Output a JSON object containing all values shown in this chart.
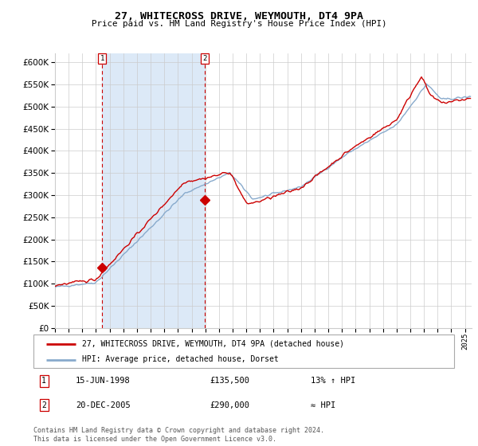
{
  "title": "27, WHITECROSS DRIVE, WEYMOUTH, DT4 9PA",
  "subtitle": "Price paid vs. HM Land Registry's House Price Index (HPI)",
  "ylim": [
    0,
    620000
  ],
  "yticks": [
    0,
    50000,
    100000,
    150000,
    200000,
    250000,
    300000,
    350000,
    400000,
    450000,
    500000,
    550000,
    600000
  ],
  "xlim_start": 1995.0,
  "xlim_end": 2025.5,
  "purchase1_date": 1998.46,
  "purchase1_price": 135500,
  "purchase2_date": 2005.97,
  "purchase2_price": 290000,
  "shade_color": "#dce9f7",
  "vline_color": "#cc0000",
  "hpi_line_color": "#88aacc",
  "price_line_color": "#cc0000",
  "marker_color": "#cc0000",
  "legend_box_label1": "27, WHITECROSS DRIVE, WEYMOUTH, DT4 9PA (detached house)",
  "legend_box_label2": "HPI: Average price, detached house, Dorset",
  "note1_date": "15-JUN-1998",
  "note1_price": "£135,500",
  "note1_hpi": "13% ↑ HPI",
  "note2_date": "20-DEC-2005",
  "note2_price": "£290,000",
  "note2_hpi": "≈ HPI",
  "footer": "Contains HM Land Registry data © Crown copyright and database right 2024.\nThis data is licensed under the Open Government Licence v3.0.",
  "grid_color": "#cccccc",
  "background_color": "#ffffff"
}
